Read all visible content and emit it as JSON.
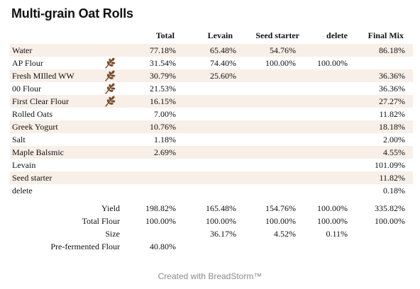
{
  "title": "Multi-grain Oat Rolls",
  "columns": [
    "Total",
    "Levain",
    "Seed starter",
    "delete",
    "Final Mix"
  ],
  "rows": [
    {
      "name": "Water",
      "grain": false,
      "values": [
        "77.18%",
        "65.48%",
        "54.76%",
        "",
        "86.18%"
      ]
    },
    {
      "name": "AP Flour",
      "grain": true,
      "values": [
        "31.54%",
        "74.40%",
        "100.00%",
        "100.00%",
        ""
      ]
    },
    {
      "name": "Fresh MIlled WW",
      "grain": true,
      "values": [
        "30.79%",
        "25.60%",
        "",
        "",
        "36.36%"
      ]
    },
    {
      "name": "00 Flour",
      "grain": true,
      "values": [
        "21.53%",
        "",
        "",
        "",
        "36.36%"
      ]
    },
    {
      "name": "First Clear Flour",
      "grain": true,
      "values": [
        "16.15%",
        "",
        "",
        "",
        "27.27%"
      ]
    },
    {
      "name": "Rolled Oats",
      "grain": false,
      "values": [
        "7.00%",
        "",
        "",
        "",
        "11.82%"
      ]
    },
    {
      "name": "Greek Yogurt",
      "grain": false,
      "values": [
        "10.76%",
        "",
        "",
        "",
        "18.18%"
      ]
    },
    {
      "name": "Salt",
      "grain": false,
      "values": [
        "1.18%",
        "",
        "",
        "",
        "2.00%"
      ]
    },
    {
      "name": "Maple Balsmic",
      "grain": false,
      "values": [
        "2.69%",
        "",
        "",
        "",
        "4.55%"
      ]
    },
    {
      "name": "Levain",
      "grain": false,
      "values": [
        "",
        "",
        "",
        "",
        "101.09%"
      ]
    },
    {
      "name": "Seed starter",
      "grain": false,
      "values": [
        "",
        "",
        "",
        "",
        "11.82%"
      ]
    },
    {
      "name": "delete",
      "grain": false,
      "values": [
        "",
        "",
        "",
        "",
        "0.18%"
      ]
    }
  ],
  "summary": [
    {
      "label": "Yield",
      "values": [
        "198.82%",
        "165.48%",
        "154.76%",
        "100.00%",
        "335.82%"
      ]
    },
    {
      "label": "Total Flour",
      "values": [
        "100.00%",
        "100.00%",
        "100.00%",
        "100.00%",
        "100.00%"
      ]
    },
    {
      "label": "Size",
      "values": [
        "",
        "36.17%",
        "4.52%",
        "0.11%",
        ""
      ]
    },
    {
      "label": "Pre-fermented Flour",
      "values": [
        "40.80%",
        "",
        "",
        "",
        ""
      ]
    }
  ],
  "footer": "Created with BreadStorm™",
  "colors": {
    "row_shade": "#f7efe8",
    "grain_icon": "#7a4a2a",
    "footer_text": "#8a8a8a"
  },
  "icons": {
    "grain": "wheat-icon"
  }
}
